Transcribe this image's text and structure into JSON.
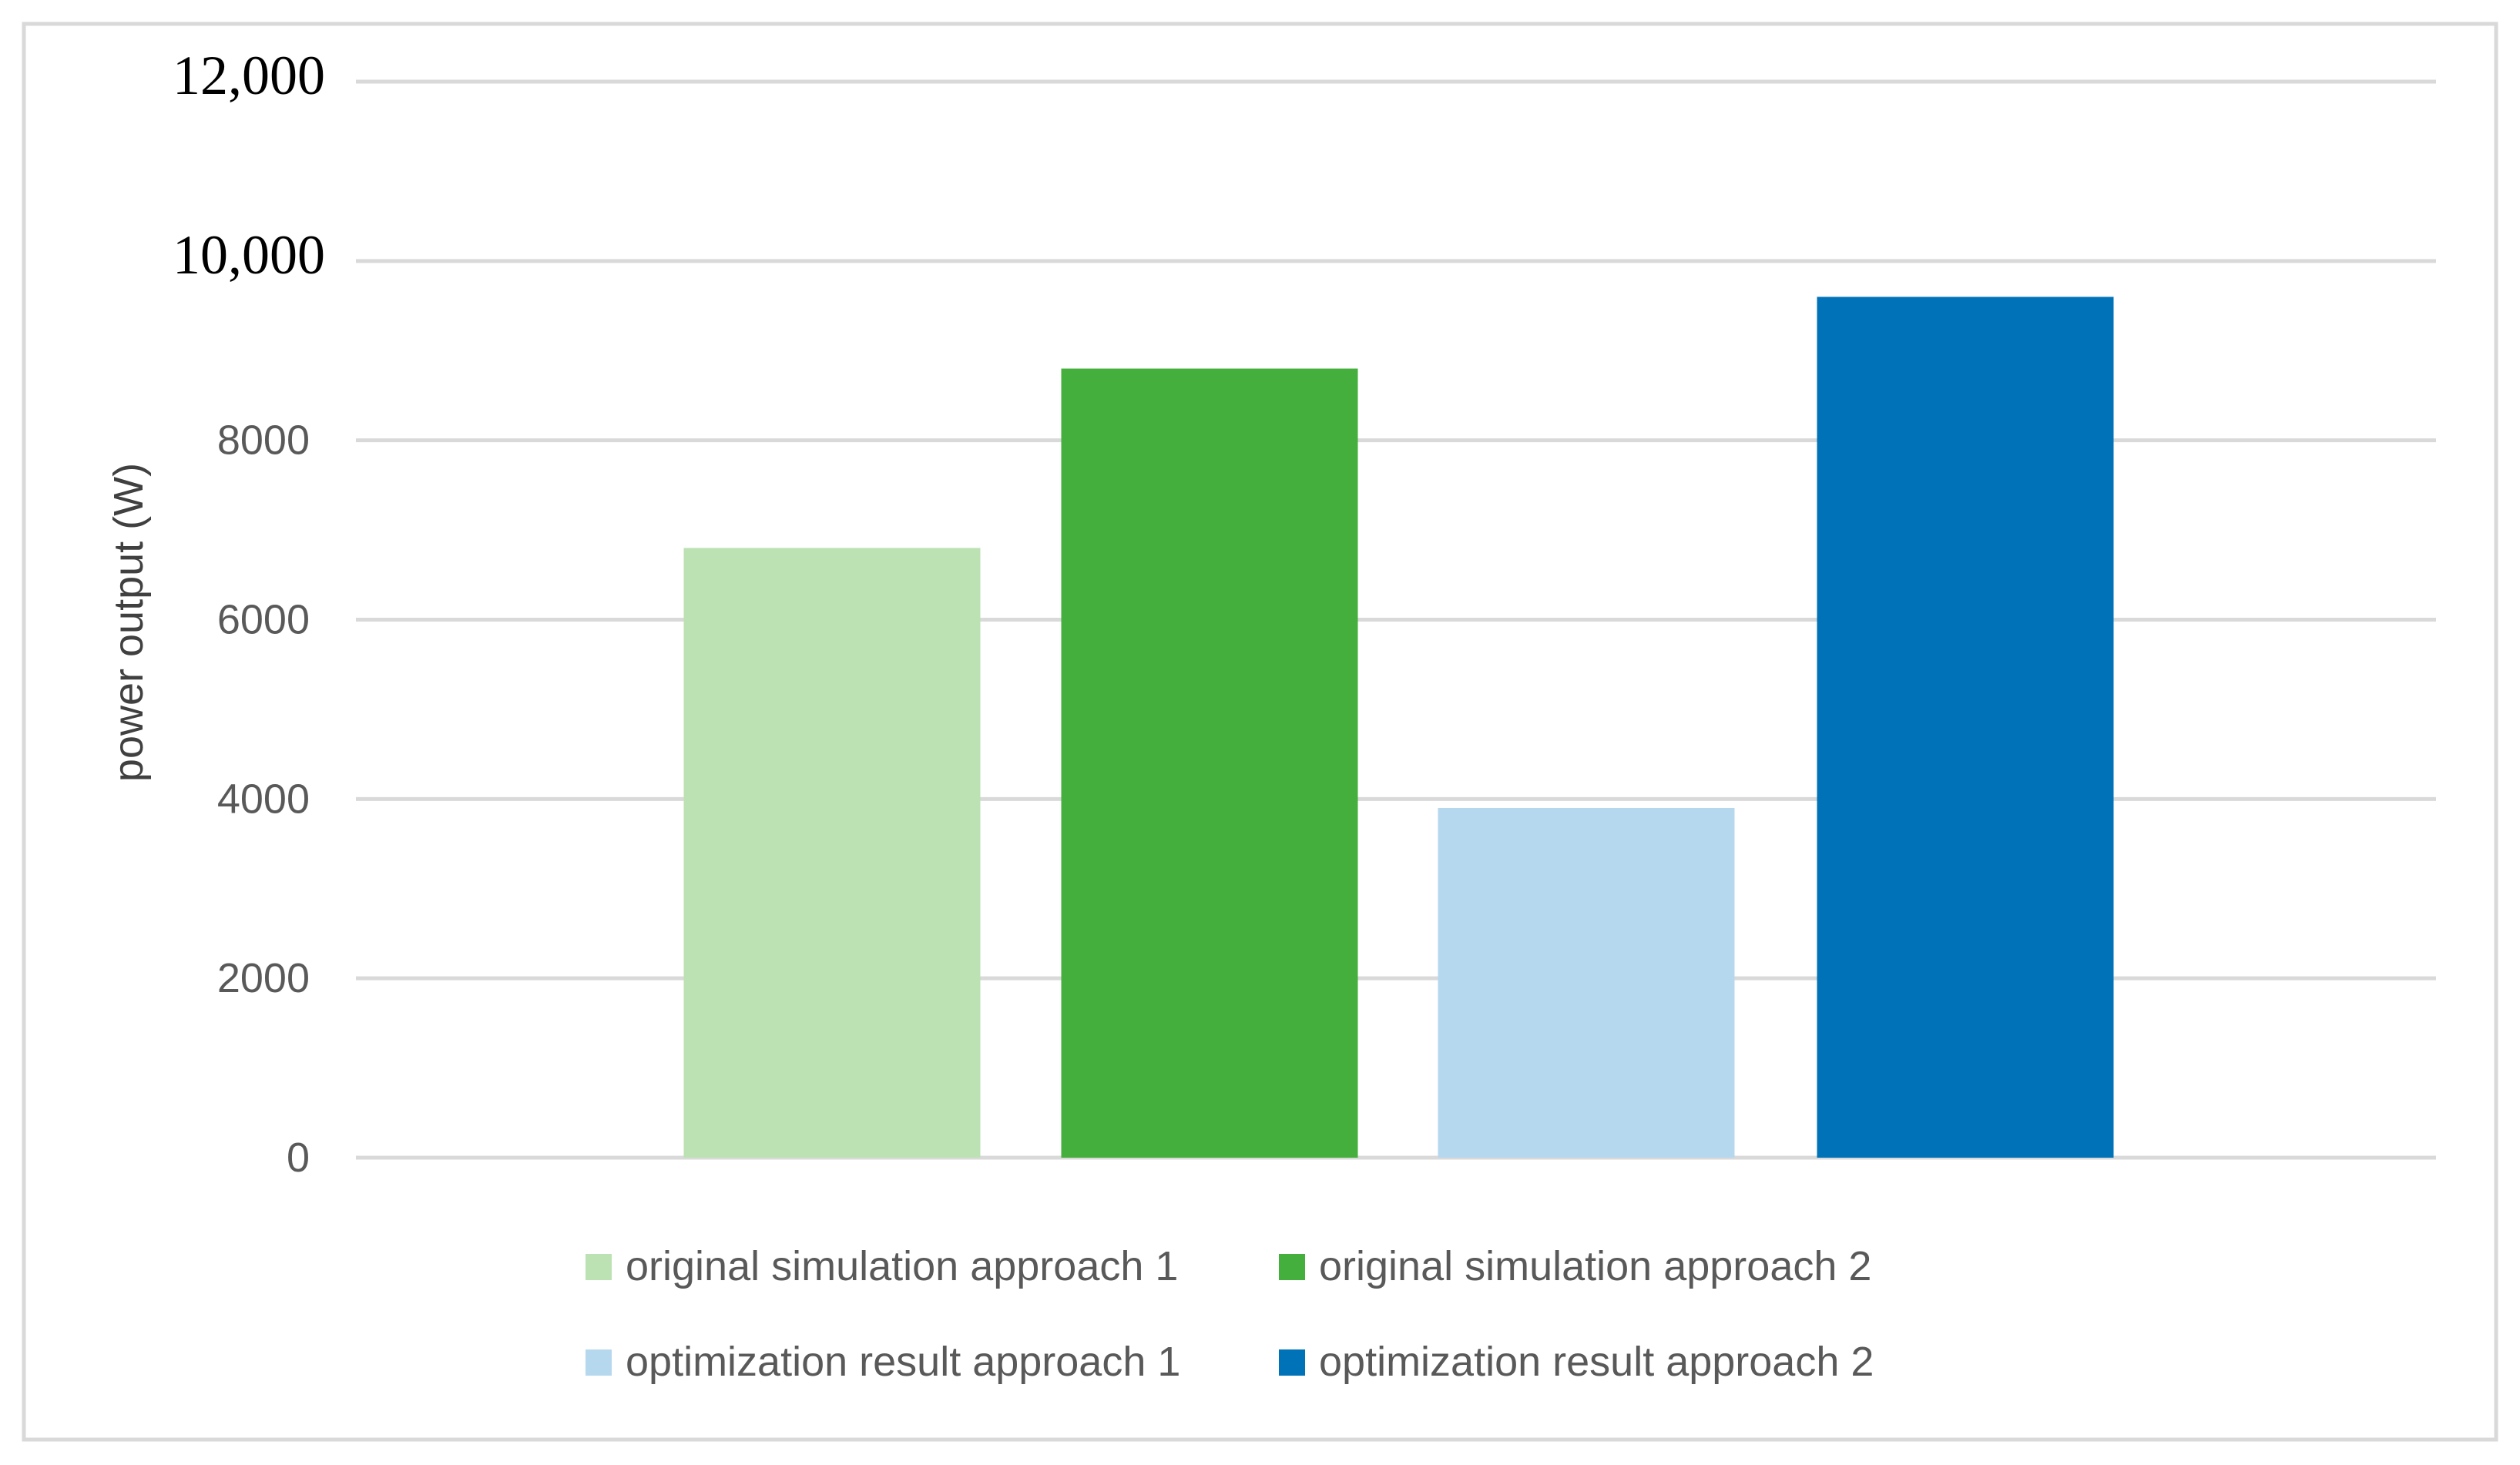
{
  "chart_data": {
    "type": "bar",
    "title": "",
    "xlabel": "",
    "ylabel": "power output (W)",
    "ylim": [
      0,
      12000
    ],
    "grid": true,
    "legend_position": "bottom",
    "y_ticks": [
      {
        "value": 0,
        "label": "0",
        "style": "sans"
      },
      {
        "value": 2000,
        "label": "2000",
        "style": "sans"
      },
      {
        "value": 4000,
        "label": "4000",
        "style": "sans"
      },
      {
        "value": 6000,
        "label": "6000",
        "style": "sans"
      },
      {
        "value": 8000,
        "label": "8000",
        "style": "sans"
      },
      {
        "value": 10000,
        "label": "10,000",
        "style": "serif"
      },
      {
        "value": 12000,
        "label": "12,000",
        "style": "serif"
      }
    ],
    "series": [
      {
        "name": "original simulation approach 1",
        "values": [
          6800
        ],
        "color": "#bce2b4"
      },
      {
        "name": "original simulation approach 2",
        "values": [
          8800
        ],
        "color": "#44af3c"
      },
      {
        "name": "optimization result approach 1",
        "values": [
          3900
        ],
        "color": "#b6d8ef"
      },
      {
        "name": "optimization result approach 2",
        "values": [
          9600
        ],
        "color": "#0072b8"
      }
    ]
  },
  "colors": {
    "background": "#ffffff",
    "border": "#d9d9d9",
    "gridline": "#d9d9d9"
  }
}
